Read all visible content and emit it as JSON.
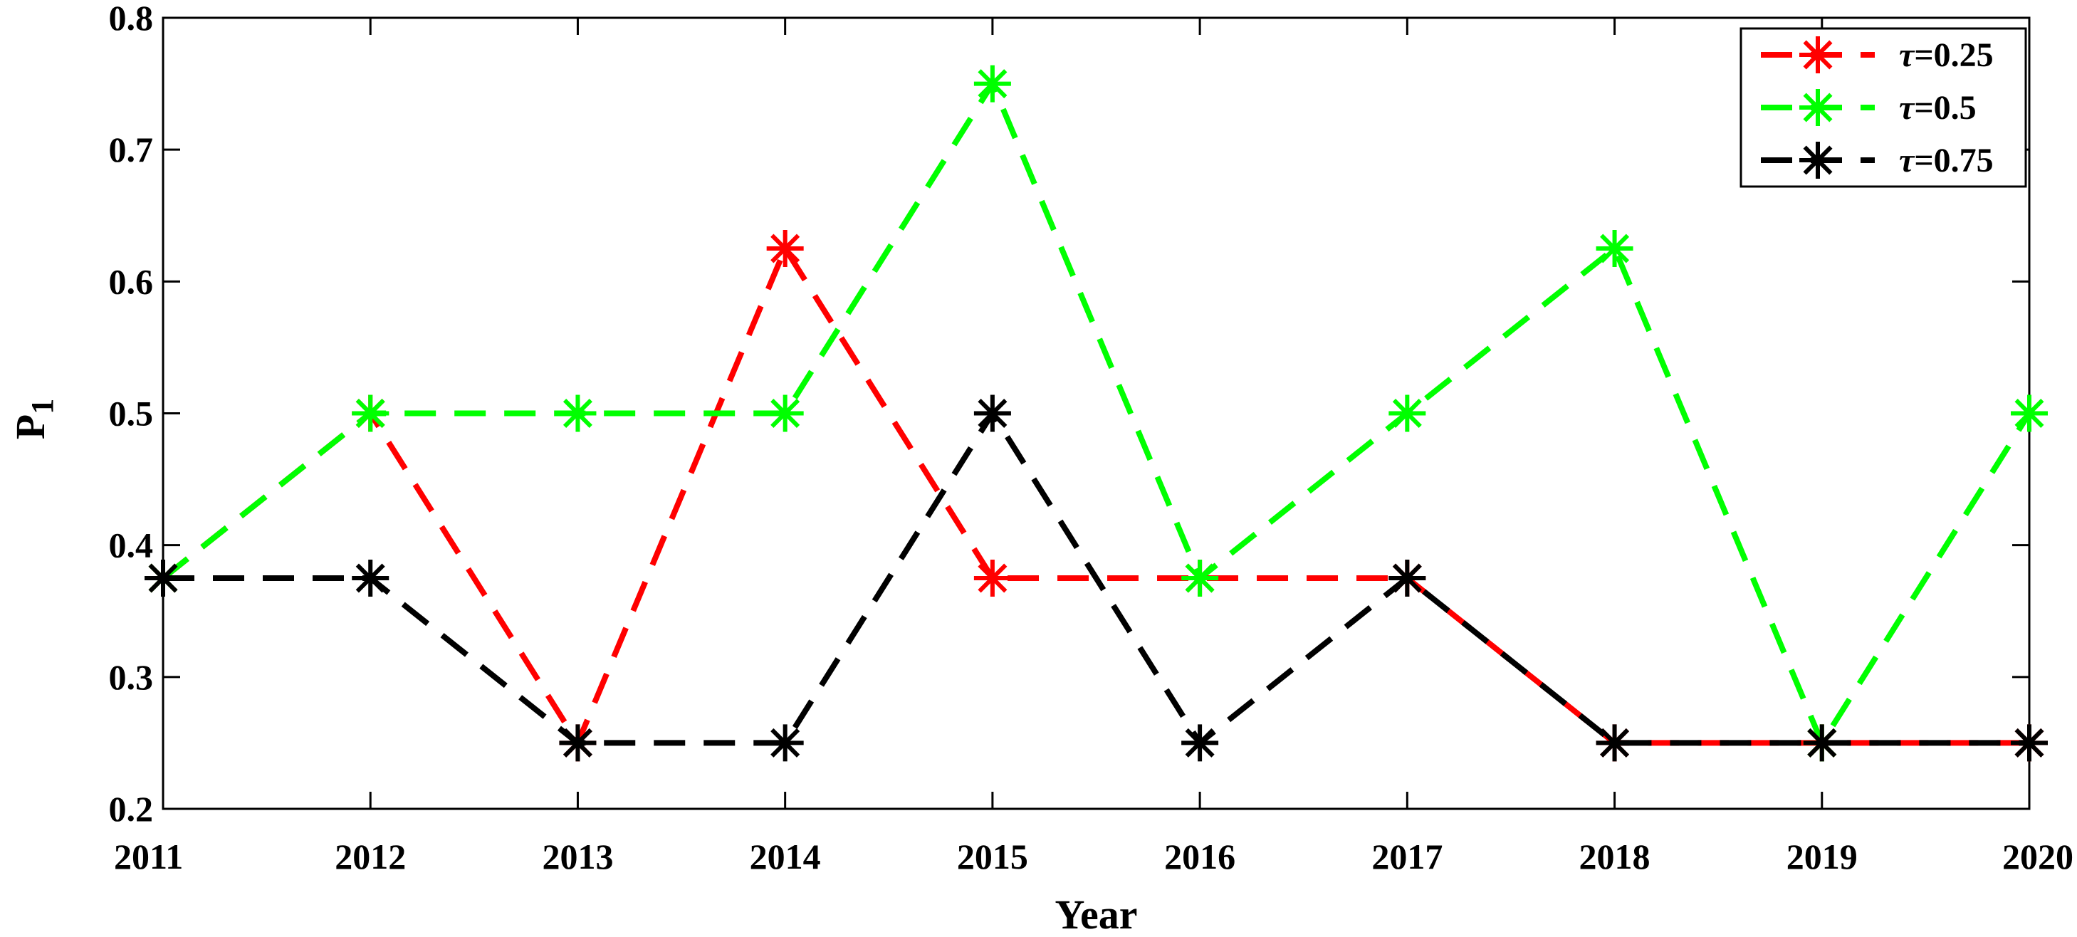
{
  "chart_data": {
    "type": "line",
    "x": [
      2011,
      2012,
      2013,
      2014,
      2015,
      2016,
      2017,
      2018,
      2019,
      2020
    ],
    "series": [
      {
        "name": "τ=0.25",
        "color": "#ff0000",
        "values": [
          0.375,
          0.5,
          0.25,
          0.625,
          0.375,
          0.375,
          0.375,
          0.25,
          0.25,
          0.25
        ]
      },
      {
        "name": "τ=0.5",
        "color": "#00ff00",
        "values": [
          0.375,
          0.5,
          0.5,
          0.5,
          0.75,
          0.375,
          0.5,
          0.625,
          0.25,
          0.5
        ]
      },
      {
        "name": "τ=0.75",
        "color": "#000000",
        "values": [
          0.375,
          0.375,
          0.25,
          0.25,
          0.5,
          0.25,
          0.375,
          0.25,
          0.25,
          0.25
        ]
      }
    ],
    "xlabel": "Year",
    "ylabel": "P",
    "ylabel_subscript": "1",
    "xlim": [
      2011,
      2020
    ],
    "ylim": [
      0.2,
      0.8
    ],
    "yticks": [
      0.2,
      0.3,
      0.4,
      0.5,
      0.6,
      0.7,
      0.8
    ],
    "yticklabels": [
      "0.2",
      "0.3",
      "0.4",
      "0.5",
      "0.6",
      "0.7",
      "0.8"
    ],
    "xticklabels": [
      "2011",
      "2012",
      "2013",
      "2014",
      "2015",
      "2016",
      "2017",
      "2018",
      "2019",
      "2020"
    ],
    "grid": false,
    "legend": "top-right",
    "line_style": "dashed",
    "marker": "asterisk"
  }
}
